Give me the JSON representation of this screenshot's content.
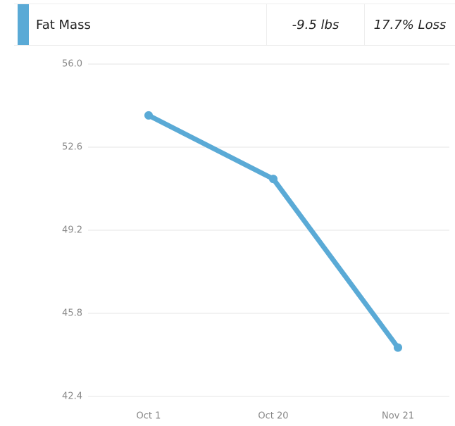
{
  "header": {
    "label": "Fat Mass",
    "change": "-9.5 lbs",
    "percent": "17.7% Loss",
    "color": "#5aaad6"
  },
  "chart_data": {
    "type": "line",
    "categories": [
      "Oct 1",
      "Oct 20",
      "Nov 21"
    ],
    "series": [
      {
        "name": "Fat Mass",
        "color": "#5aaad6",
        "values": [
          53.9,
          51.3,
          44.4
        ]
      }
    ],
    "ylim": [
      42.4,
      56.0
    ],
    "yticks": [
      {
        "value": 56.0,
        "label": "56.0"
      },
      52.6,
      49.2,
      45.8,
      42.4
    ],
    "grid": true
  }
}
